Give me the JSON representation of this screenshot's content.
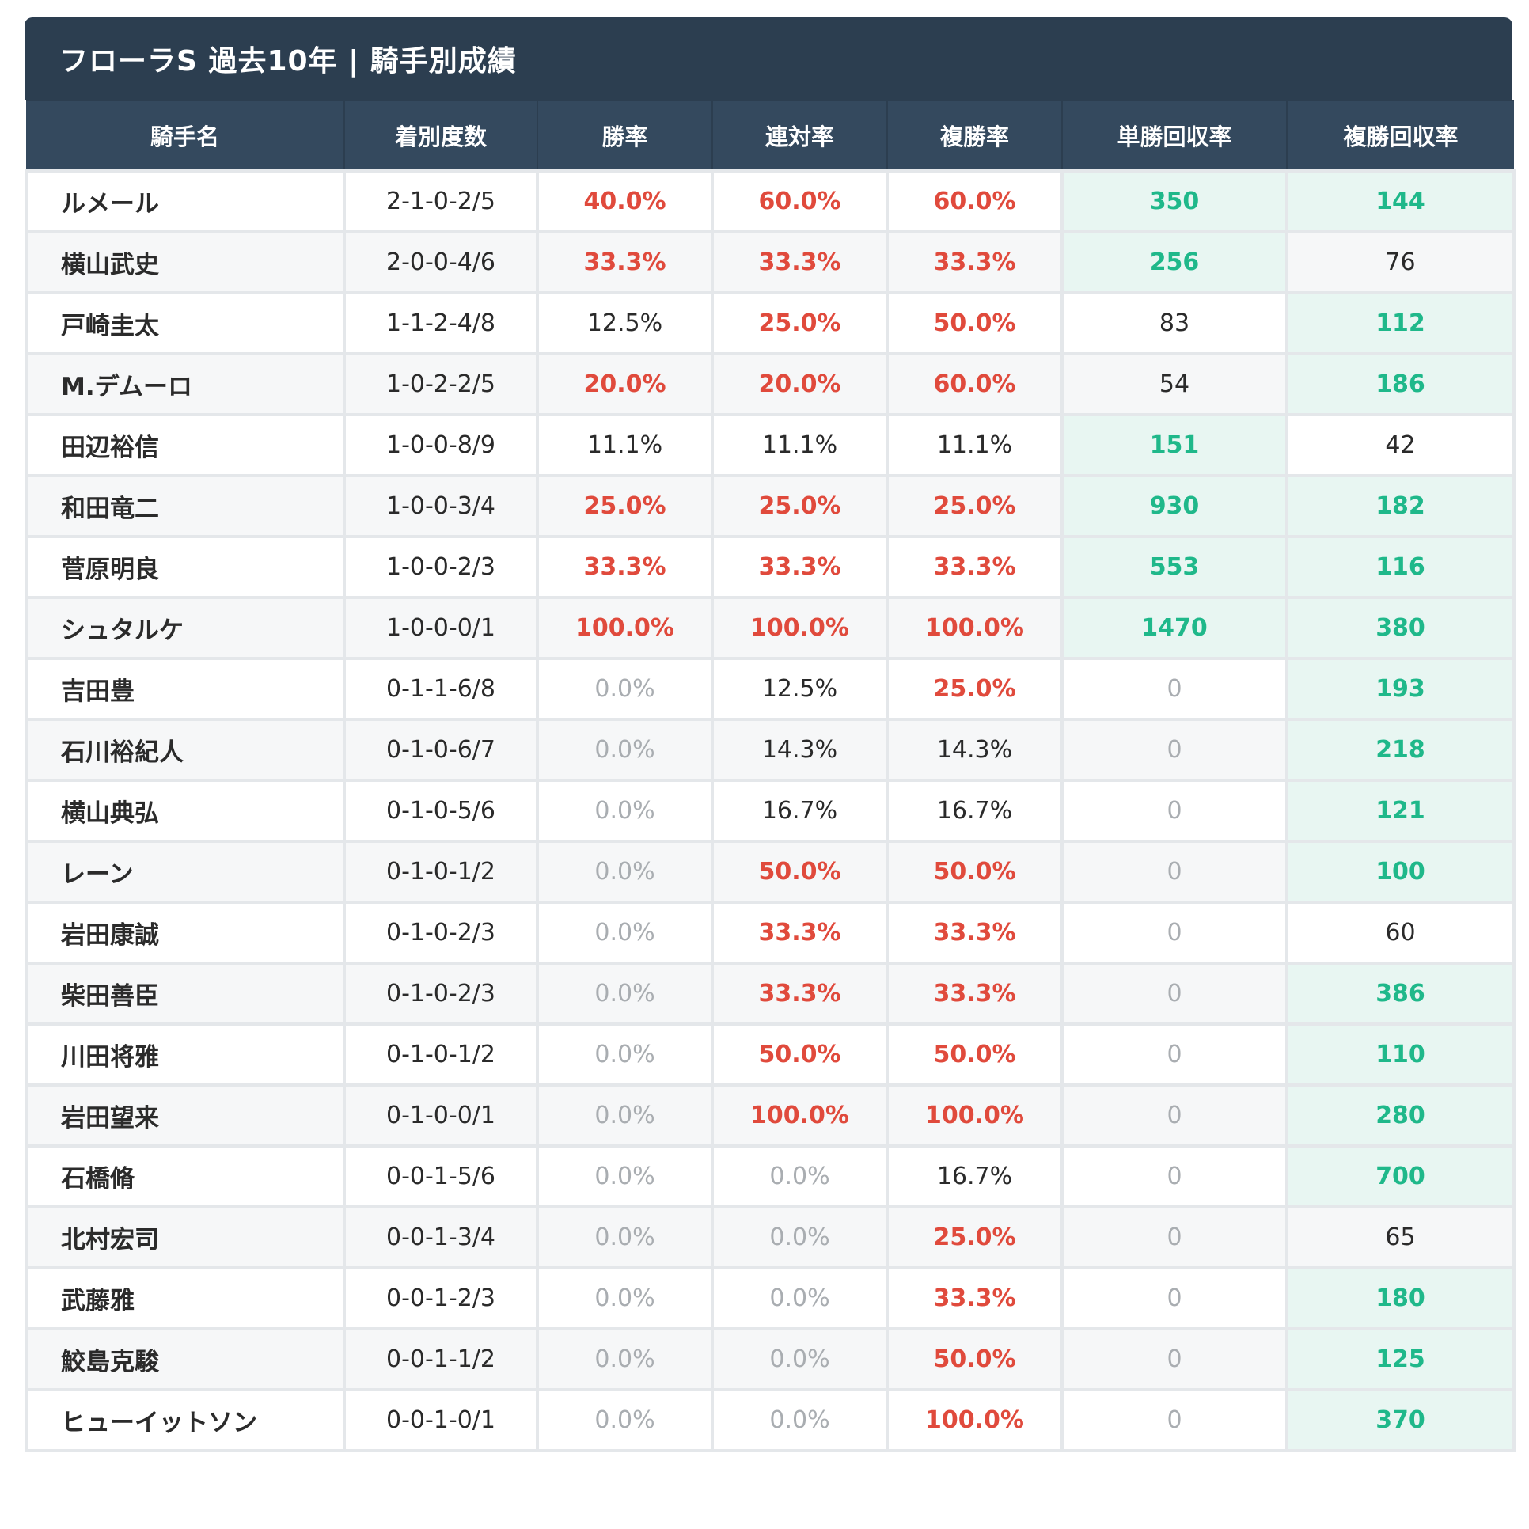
{
  "title": "フローラS 過去10年 | 騎手別成績",
  "columns": [
    "騎手名",
    "着別度数",
    "勝率",
    "連対率",
    "複勝率",
    "単勝回収率",
    "複勝回収率"
  ],
  "colors": {
    "header_bg": "#2c3e50",
    "highlight_rate": "#e04a3c",
    "zero_rate": "#a9adb1",
    "good_return": "#1fb88a",
    "good_return_bg": "#e8f6f2"
  },
  "rows": [
    {
      "name": "ルメール",
      "record": "2-1-0-2/5",
      "win": "40.0%",
      "quinella": "60.0%",
      "place": "60.0%",
      "win_return": "350",
      "place_return": "144"
    },
    {
      "name": "横山武史",
      "record": "2-0-0-4/6",
      "win": "33.3%",
      "quinella": "33.3%",
      "place": "33.3%",
      "win_return": "256",
      "place_return": "76"
    },
    {
      "name": "戸崎圭太",
      "record": "1-1-2-4/8",
      "win": "12.5%",
      "quinella": "25.0%",
      "place": "50.0%",
      "win_return": "83",
      "place_return": "112"
    },
    {
      "name": "M.デムーロ",
      "record": "1-0-2-2/5",
      "win": "20.0%",
      "quinella": "20.0%",
      "place": "60.0%",
      "win_return": "54",
      "place_return": "186"
    },
    {
      "name": "田辺裕信",
      "record": "1-0-0-8/9",
      "win": "11.1%",
      "quinella": "11.1%",
      "place": "11.1%",
      "win_return": "151",
      "place_return": "42"
    },
    {
      "name": "和田竜二",
      "record": "1-0-0-3/4",
      "win": "25.0%",
      "quinella": "25.0%",
      "place": "25.0%",
      "win_return": "930",
      "place_return": "182"
    },
    {
      "name": "菅原明良",
      "record": "1-0-0-2/3",
      "win": "33.3%",
      "quinella": "33.3%",
      "place": "33.3%",
      "win_return": "553",
      "place_return": "116"
    },
    {
      "name": "シュタルケ",
      "record": "1-0-0-0/1",
      "win": "100.0%",
      "quinella": "100.0%",
      "place": "100.0%",
      "win_return": "1470",
      "place_return": "380"
    },
    {
      "name": "吉田豊",
      "record": "0-1-1-6/8",
      "win": "0.0%",
      "quinella": "12.5%",
      "place": "25.0%",
      "win_return": "0",
      "place_return": "193"
    },
    {
      "name": "石川裕紀人",
      "record": "0-1-0-6/7",
      "win": "0.0%",
      "quinella": "14.3%",
      "place": "14.3%",
      "win_return": "0",
      "place_return": "218"
    },
    {
      "name": "横山典弘",
      "record": "0-1-0-5/6",
      "win": "0.0%",
      "quinella": "16.7%",
      "place": "16.7%",
      "win_return": "0",
      "place_return": "121"
    },
    {
      "name": "レーン",
      "record": "0-1-0-1/2",
      "win": "0.0%",
      "quinella": "50.0%",
      "place": "50.0%",
      "win_return": "0",
      "place_return": "100"
    },
    {
      "name": "岩田康誠",
      "record": "0-1-0-2/3",
      "win": "0.0%",
      "quinella": "33.3%",
      "place": "33.3%",
      "win_return": "0",
      "place_return": "60"
    },
    {
      "name": "柴田善臣",
      "record": "0-1-0-2/3",
      "win": "0.0%",
      "quinella": "33.3%",
      "place": "33.3%",
      "win_return": "0",
      "place_return": "386"
    },
    {
      "name": "川田将雅",
      "record": "0-1-0-1/2",
      "win": "0.0%",
      "quinella": "50.0%",
      "place": "50.0%",
      "win_return": "0",
      "place_return": "110"
    },
    {
      "name": "岩田望来",
      "record": "0-1-0-0/1",
      "win": "0.0%",
      "quinella": "100.0%",
      "place": "100.0%",
      "win_return": "0",
      "place_return": "280"
    },
    {
      "name": "石橋脩",
      "record": "0-0-1-5/6",
      "win": "0.0%",
      "quinella": "0.0%",
      "place": "16.7%",
      "win_return": "0",
      "place_return": "700"
    },
    {
      "name": "北村宏司",
      "record": "0-0-1-3/4",
      "win": "0.0%",
      "quinella": "0.0%",
      "place": "25.0%",
      "win_return": "0",
      "place_return": "65"
    },
    {
      "name": "武藤雅",
      "record": "0-0-1-2/3",
      "win": "0.0%",
      "quinella": "0.0%",
      "place": "33.3%",
      "win_return": "0",
      "place_return": "180"
    },
    {
      "name": "鮫島克駿",
      "record": "0-0-1-1/2",
      "win": "0.0%",
      "quinella": "0.0%",
      "place": "50.0%",
      "win_return": "0",
      "place_return": "125"
    },
    {
      "name": "ヒューイットソン",
      "record": "0-0-1-0/1",
      "win": "0.0%",
      "quinella": "0.0%",
      "place": "100.0%",
      "win_return": "0",
      "place_return": "370"
    }
  ]
}
